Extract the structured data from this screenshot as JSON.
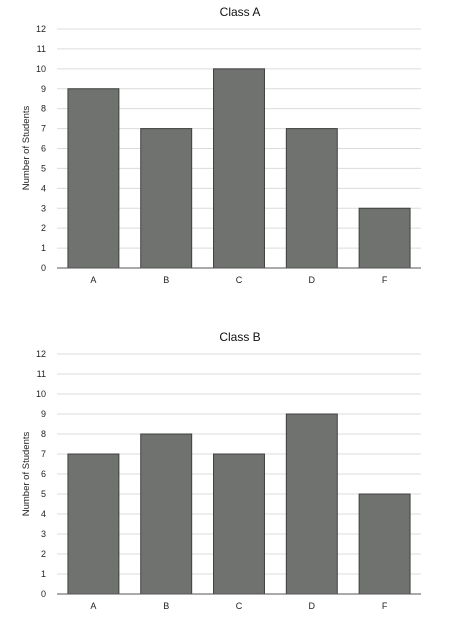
{
  "colors": {
    "bar": "#6f726f",
    "bar_stroke": "#3e403e",
    "grid": "#dcdcdc",
    "axis": "#555555"
  },
  "chart_data": [
    {
      "type": "bar",
      "title": "Class A",
      "xlabel": "",
      "ylabel": "Number of Students",
      "categories": [
        "A",
        "B",
        "C",
        "D",
        "F"
      ],
      "values": [
        9,
        7,
        10,
        7,
        3
      ],
      "ylim": [
        0,
        12
      ],
      "yticks": [
        0,
        1,
        2,
        3,
        4,
        5,
        6,
        7,
        8,
        9,
        10,
        11,
        12
      ],
      "grid": true,
      "legend": "none"
    },
    {
      "type": "bar",
      "title": "Class B",
      "xlabel": "",
      "ylabel": "Number of Students",
      "categories": [
        "A",
        "B",
        "C",
        "D",
        "F"
      ],
      "values": [
        7,
        8,
        7,
        9,
        5
      ],
      "ylim": [
        0,
        12
      ],
      "yticks": [
        0,
        1,
        2,
        3,
        4,
        5,
        6,
        7,
        8,
        9,
        10,
        11,
        12
      ],
      "grid": true,
      "legend": "none"
    }
  ]
}
